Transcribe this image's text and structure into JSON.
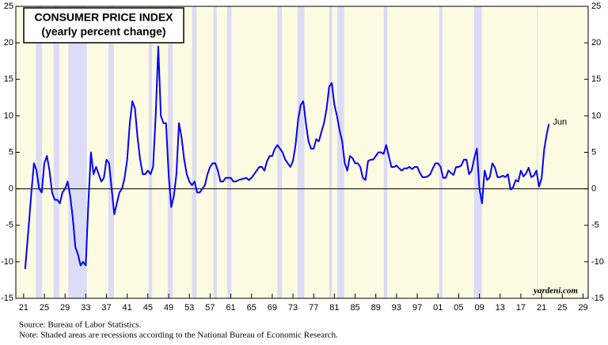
{
  "chart_data": {
    "type": "line",
    "title": "CONSUMER PRICE INDEX",
    "subtitle": "(yearly percent change)",
    "source": "Source: Bureau of Labor Statistics.",
    "note": "Note: Shaded areas are recessions according to the National Bureau of Economic Research.",
    "watermark": "yardeni.com",
    "annotation": "Jun",
    "xlim": [
      1919.5,
      2030
    ],
    "ylim": [
      -15,
      25
    ],
    "yticks": [
      -15,
      -10,
      -5,
      0,
      5,
      10,
      15,
      20,
      25
    ],
    "xticks": [
      {
        "value": 1921,
        "label": "21"
      },
      {
        "value": 1925,
        "label": "25"
      },
      {
        "value": 1929,
        "label": "29"
      },
      {
        "value": 1933,
        "label": "33"
      },
      {
        "value": 1937,
        "label": "37"
      },
      {
        "value": 1941,
        "label": "41"
      },
      {
        "value": 1945,
        "label": "45"
      },
      {
        "value": 1949,
        "label": "49"
      },
      {
        "value": 1953,
        "label": "53"
      },
      {
        "value": 1957,
        "label": "57"
      },
      {
        "value": 1961,
        "label": "61"
      },
      {
        "value": 1965,
        "label": "65"
      },
      {
        "value": 1969,
        "label": "69"
      },
      {
        "value": 1973,
        "label": "73"
      },
      {
        "value": 1977,
        "label": "77"
      },
      {
        "value": 1981,
        "label": "81"
      },
      {
        "value": 1985,
        "label": "85"
      },
      {
        "value": 1989,
        "label": "89"
      },
      {
        "value": 1993,
        "label": "93"
      },
      {
        "value": 1997,
        "label": "97"
      },
      {
        "value": 2001,
        "label": "01"
      },
      {
        "value": 2005,
        "label": "05"
      },
      {
        "value": 2009,
        "label": "09"
      },
      {
        "value": 2013,
        "label": "13"
      },
      {
        "value": 2017,
        "label": "17"
      },
      {
        "value": 2021,
        "label": "21"
      },
      {
        "value": 2025,
        "label": "25"
      },
      {
        "value": 2029,
        "label": "29"
      }
    ],
    "recession_color": "#dcdcf6",
    "background_color": "#fdfbe1",
    "recessions": [
      [
        1923.37,
        1924.54
      ],
      [
        1926.79,
        1927.87
      ],
      [
        1929.62,
        1933.21
      ],
      [
        1937.37,
        1938.46
      ],
      [
        1945.12,
        1945.79
      ],
      [
        1948.87,
        1949.79
      ],
      [
        1953.54,
        1954.37
      ],
      [
        1957.62,
        1958.29
      ],
      [
        1960.29,
        1961.12
      ],
      [
        1969.96,
        1970.87
      ],
      [
        1973.87,
        1975.21
      ],
      [
        1980.0,
        1980.54
      ],
      [
        1981.54,
        1982.87
      ],
      [
        1990.54,
        1991.21
      ],
      [
        2001.21,
        2001.87
      ],
      [
        2007.96,
        2009.46
      ],
      [
        2020.12,
        2020.29
      ]
    ],
    "series": [
      {
        "name": "CPI",
        "color": "#0000ff",
        "x": [
          1921.3,
          1922,
          1922.5,
          1923,
          1923.5,
          1924,
          1924.5,
          1925,
          1925.5,
          1926,
          1926.5,
          1927,
          1927.5,
          1928,
          1928.5,
          1929,
          1929.5,
          1930,
          1930.5,
          1931,
          1931.5,
          1932,
          1932.5,
          1933,
          1933.5,
          1934,
          1934.5,
          1935,
          1935.5,
          1936,
          1936.5,
          1937,
          1937.5,
          1938,
          1938.5,
          1939,
          1939.5,
          1940,
          1940.5,
          1941,
          1941.5,
          1942,
          1942.5,
          1943,
          1943.5,
          1944,
          1944.5,
          1945,
          1945.5,
          1946,
          1946.5,
          1947,
          1947.5,
          1948,
          1948.5,
          1949,
          1949.5,
          1950,
          1950.5,
          1951,
          1951.5,
          1952,
          1952.5,
          1953,
          1953.5,
          1954,
          1954.5,
          1955,
          1955.5,
          1956,
          1956.5,
          1957,
          1957.5,
          1958,
          1958.5,
          1959,
          1959.5,
          1960,
          1960.5,
          1961,
          1961.5,
          1962,
          1962.5,
          1963,
          1963.5,
          1964,
          1964.5,
          1965,
          1965.5,
          1966,
          1966.5,
          1967,
          1967.5,
          1968,
          1968.5,
          1969,
          1969.5,
          1970,
          1970.5,
          1971,
          1971.5,
          1972,
          1972.5,
          1973,
          1973.5,
          1974,
          1974.5,
          1975,
          1975.5,
          1976,
          1976.5,
          1977,
          1977.5,
          1978,
          1978.5,
          1979,
          1979.5,
          1980,
          1980.5,
          1981,
          1981.5,
          1982,
          1982.5,
          1983,
          1983.5,
          1984,
          1984.5,
          1985,
          1985.5,
          1986,
          1986.5,
          1987,
          1987.5,
          1988,
          1988.5,
          1989,
          1989.5,
          1990,
          1990.5,
          1991,
          1991.5,
          1992,
          1992.5,
          1993,
          1993.5,
          1994,
          1994.5,
          1995,
          1995.5,
          1996,
          1996.5,
          1997,
          1997.5,
          1998,
          1998.5,
          1999,
          1999.5,
          2000,
          2000.5,
          2001,
          2001.5,
          2002,
          2002.5,
          2003,
          2003.5,
          2004,
          2004.5,
          2005,
          2005.5,
          2006,
          2006.5,
          2007,
          2007.5,
          2008,
          2008.5,
          2009,
          2009.5,
          2010,
          2010.5,
          2011,
          2011.5,
          2012,
          2012.5,
          2013,
          2013.5,
          2014,
          2014.5,
          2015,
          2015.5,
          2016,
          2016.5,
          2017,
          2017.5,
          2018,
          2018.5,
          2019,
          2019.5,
          2020,
          2020.5,
          2021,
          2021.5,
          2022,
          2022.42
        ],
        "values": [
          -11,
          -5,
          -0.5,
          3.5,
          2.5,
          0,
          -0.5,
          3.5,
          4.5,
          2.5,
          -0.5,
          -1.5,
          -1.5,
          -2,
          -0.5,
          0,
          1,
          -1,
          -4,
          -8,
          -9,
          -10.5,
          -10,
          -10.5,
          -2,
          5,
          2,
          3,
          2,
          1,
          1.5,
          4,
          3.5,
          0,
          -3.5,
          -2,
          -0.5,
          0,
          1.5,
          4,
          9,
          12,
          11,
          7,
          4,
          2,
          2,
          2.5,
          2,
          3,
          10,
          19.5,
          10,
          9,
          9,
          2,
          -2.5,
          -1,
          2,
          9,
          7,
          4,
          2,
          1,
          0.5,
          1,
          -0.5,
          -0.5,
          0,
          0.5,
          2,
          3,
          3.5,
          3.5,
          2.5,
          1,
          1,
          1.5,
          1.5,
          1.5,
          1,
          1,
          1.2,
          1.3,
          1.4,
          1.5,
          1.2,
          1.5,
          2,
          2.5,
          3,
          3,
          2.5,
          3.8,
          4.5,
          4.5,
          5.5,
          6,
          5.5,
          5,
          4,
          3.5,
          3,
          3.8,
          6,
          9.5,
          11.5,
          12,
          9,
          6.5,
          5.5,
          5.5,
          6.8,
          6.5,
          7.8,
          9,
          11,
          14,
          14.5,
          11.5,
          10,
          8,
          6.5,
          3.5,
          2.5,
          4.5,
          4.2,
          3.5,
          3.5,
          3,
          1.5,
          1.2,
          3.8,
          4,
          4,
          4.5,
          5,
          5,
          4.8,
          6,
          4.5,
          3,
          3,
          3.2,
          2.8,
          2.5,
          2.8,
          2.8,
          3,
          2.7,
          3,
          3,
          2.2,
          1.6,
          1.6,
          1.7,
          2,
          2.8,
          3.5,
          3.5,
          3,
          1.5,
          1.5,
          2.5,
          2.2,
          1.9,
          3,
          3,
          3.2,
          4,
          4,
          2,
          2.5,
          4.2,
          5.5,
          0,
          -2,
          2.5,
          1.2,
          1.6,
          3.5,
          2.9,
          1.6,
          1.6,
          1.8,
          1.6,
          2,
          -0.1,
          0.2,
          1.2,
          1,
          2.5,
          1.7,
          2.1,
          2.9,
          1.6,
          1.8,
          2.5,
          0.3,
          1.4,
          5.4,
          7.5,
          8.9
        ]
      }
    ]
  }
}
